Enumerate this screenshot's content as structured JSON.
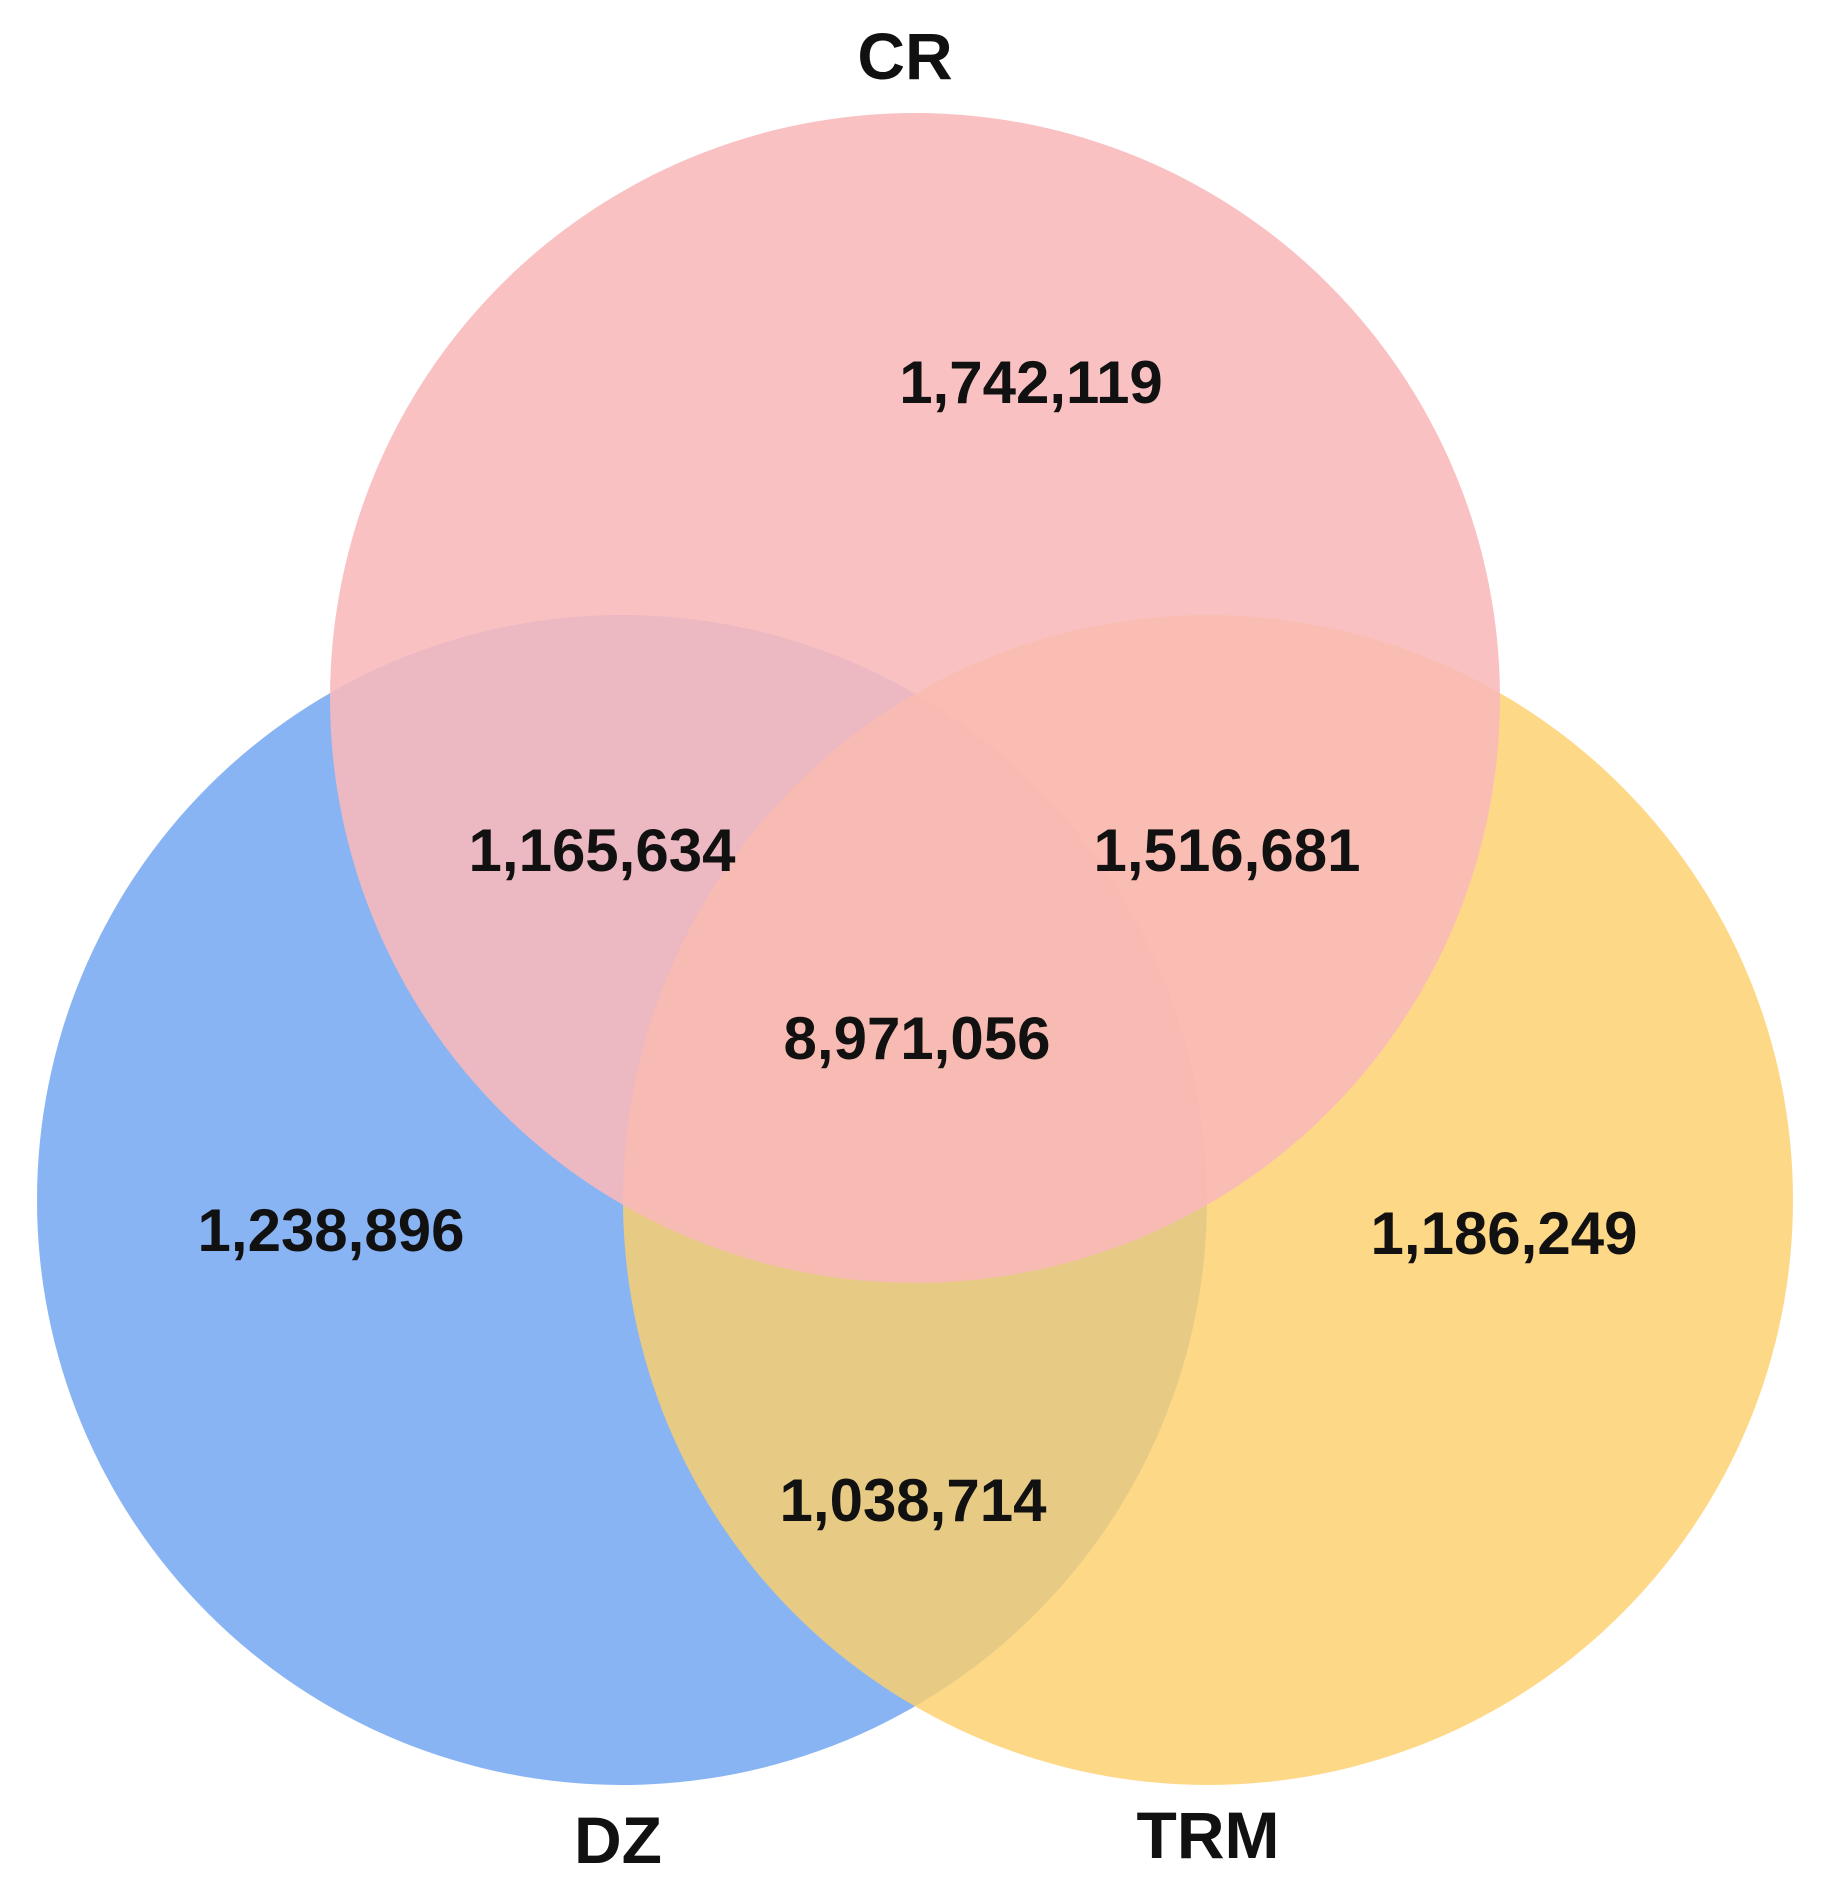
{
  "sets": {
    "cr": {
      "label": "CR",
      "color": "#f9b8b9"
    },
    "dz": {
      "label": "DZ",
      "color": "#6ea3f2"
    },
    "trm": {
      "label": "TRM",
      "color": "#fccf6d"
    }
  },
  "regions": {
    "cr_only": "1,742,119",
    "dz_only": "1,238,896",
    "trm_only": "1,186,249",
    "cr_dz": "1,165,634",
    "cr_trm": "1,516,681",
    "dz_trm": "1,038,714",
    "all": "8,971,056"
  }
}
